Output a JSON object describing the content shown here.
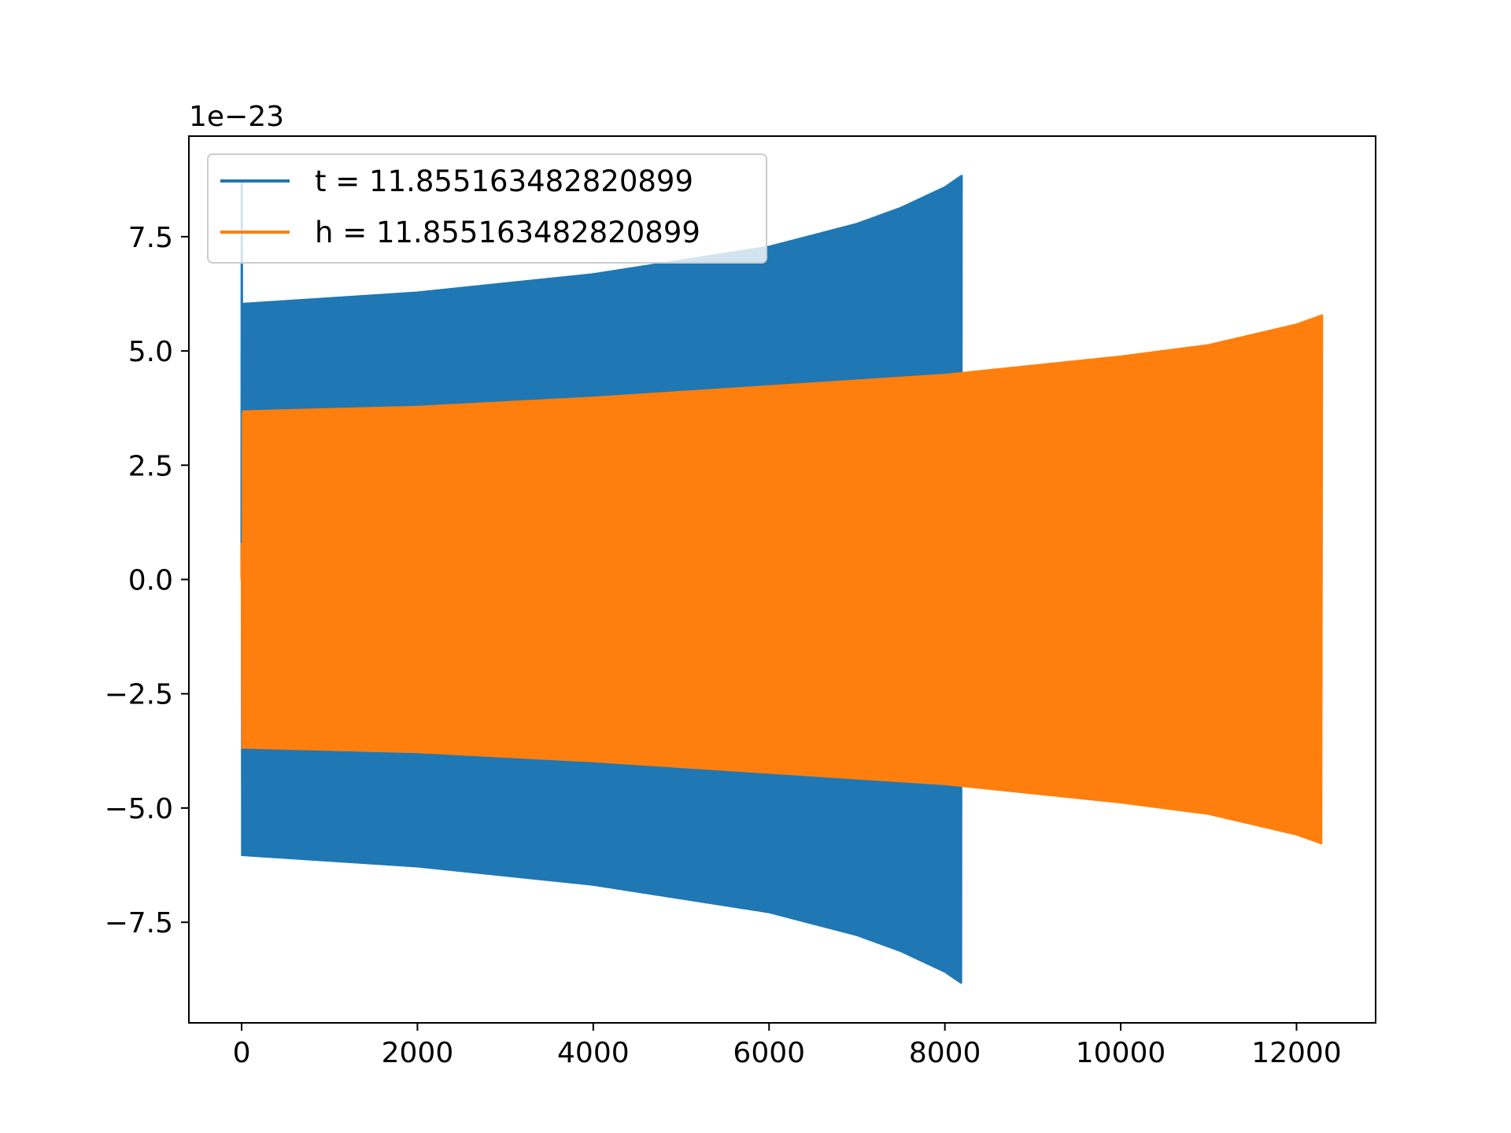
{
  "chart_data": {
    "type": "line",
    "title": "",
    "xlabel": "",
    "ylabel": "",
    "offset_label": "1e−23",
    "xlim": [
      -600,
      12900
    ],
    "ylim": [
      -9.7,
      9.7
    ],
    "x_ticks": [
      0,
      2000,
      4000,
      6000,
      8000,
      10000,
      12000
    ],
    "x_tick_labels": [
      "0",
      "2000",
      "4000",
      "6000",
      "8000",
      "10000",
      "12000"
    ],
    "y_ticks": [
      -7.5,
      -5.0,
      -2.5,
      0.0,
      2.5,
      5.0,
      7.5
    ],
    "y_tick_labels": [
      "−7.5",
      "−5.0",
      "−2.5",
      "0.0",
      "2.5",
      "5.0",
      "7.5"
    ],
    "grid": false,
    "legend_position": "top-left",
    "series": [
      {
        "name": "t = 11.855163482820899",
        "color": "#1f77b4",
        "x_start": 0,
        "x_end": 8190,
        "initial_spike": 8.7,
        "envelope": {
          "x": [
            0,
            2000,
            4000,
            6000,
            7000,
            7500,
            8000,
            8190
          ],
          "amplitude": [
            6.05,
            6.3,
            6.7,
            7.3,
            7.8,
            8.15,
            8.6,
            8.85
          ]
        }
      },
      {
        "name": "h = 11.855163482820899",
        "color": "#ff7f0e",
        "x_start": 0,
        "x_end": 12290,
        "initial_spike": 0.8,
        "envelope": {
          "x": [
            0,
            2000,
            4000,
            6000,
            8000,
            10000,
            11000,
            12000,
            12290
          ],
          "amplitude": [
            3.7,
            3.8,
            4.0,
            4.25,
            4.5,
            4.9,
            5.15,
            5.6,
            5.8
          ]
        }
      }
    ]
  }
}
